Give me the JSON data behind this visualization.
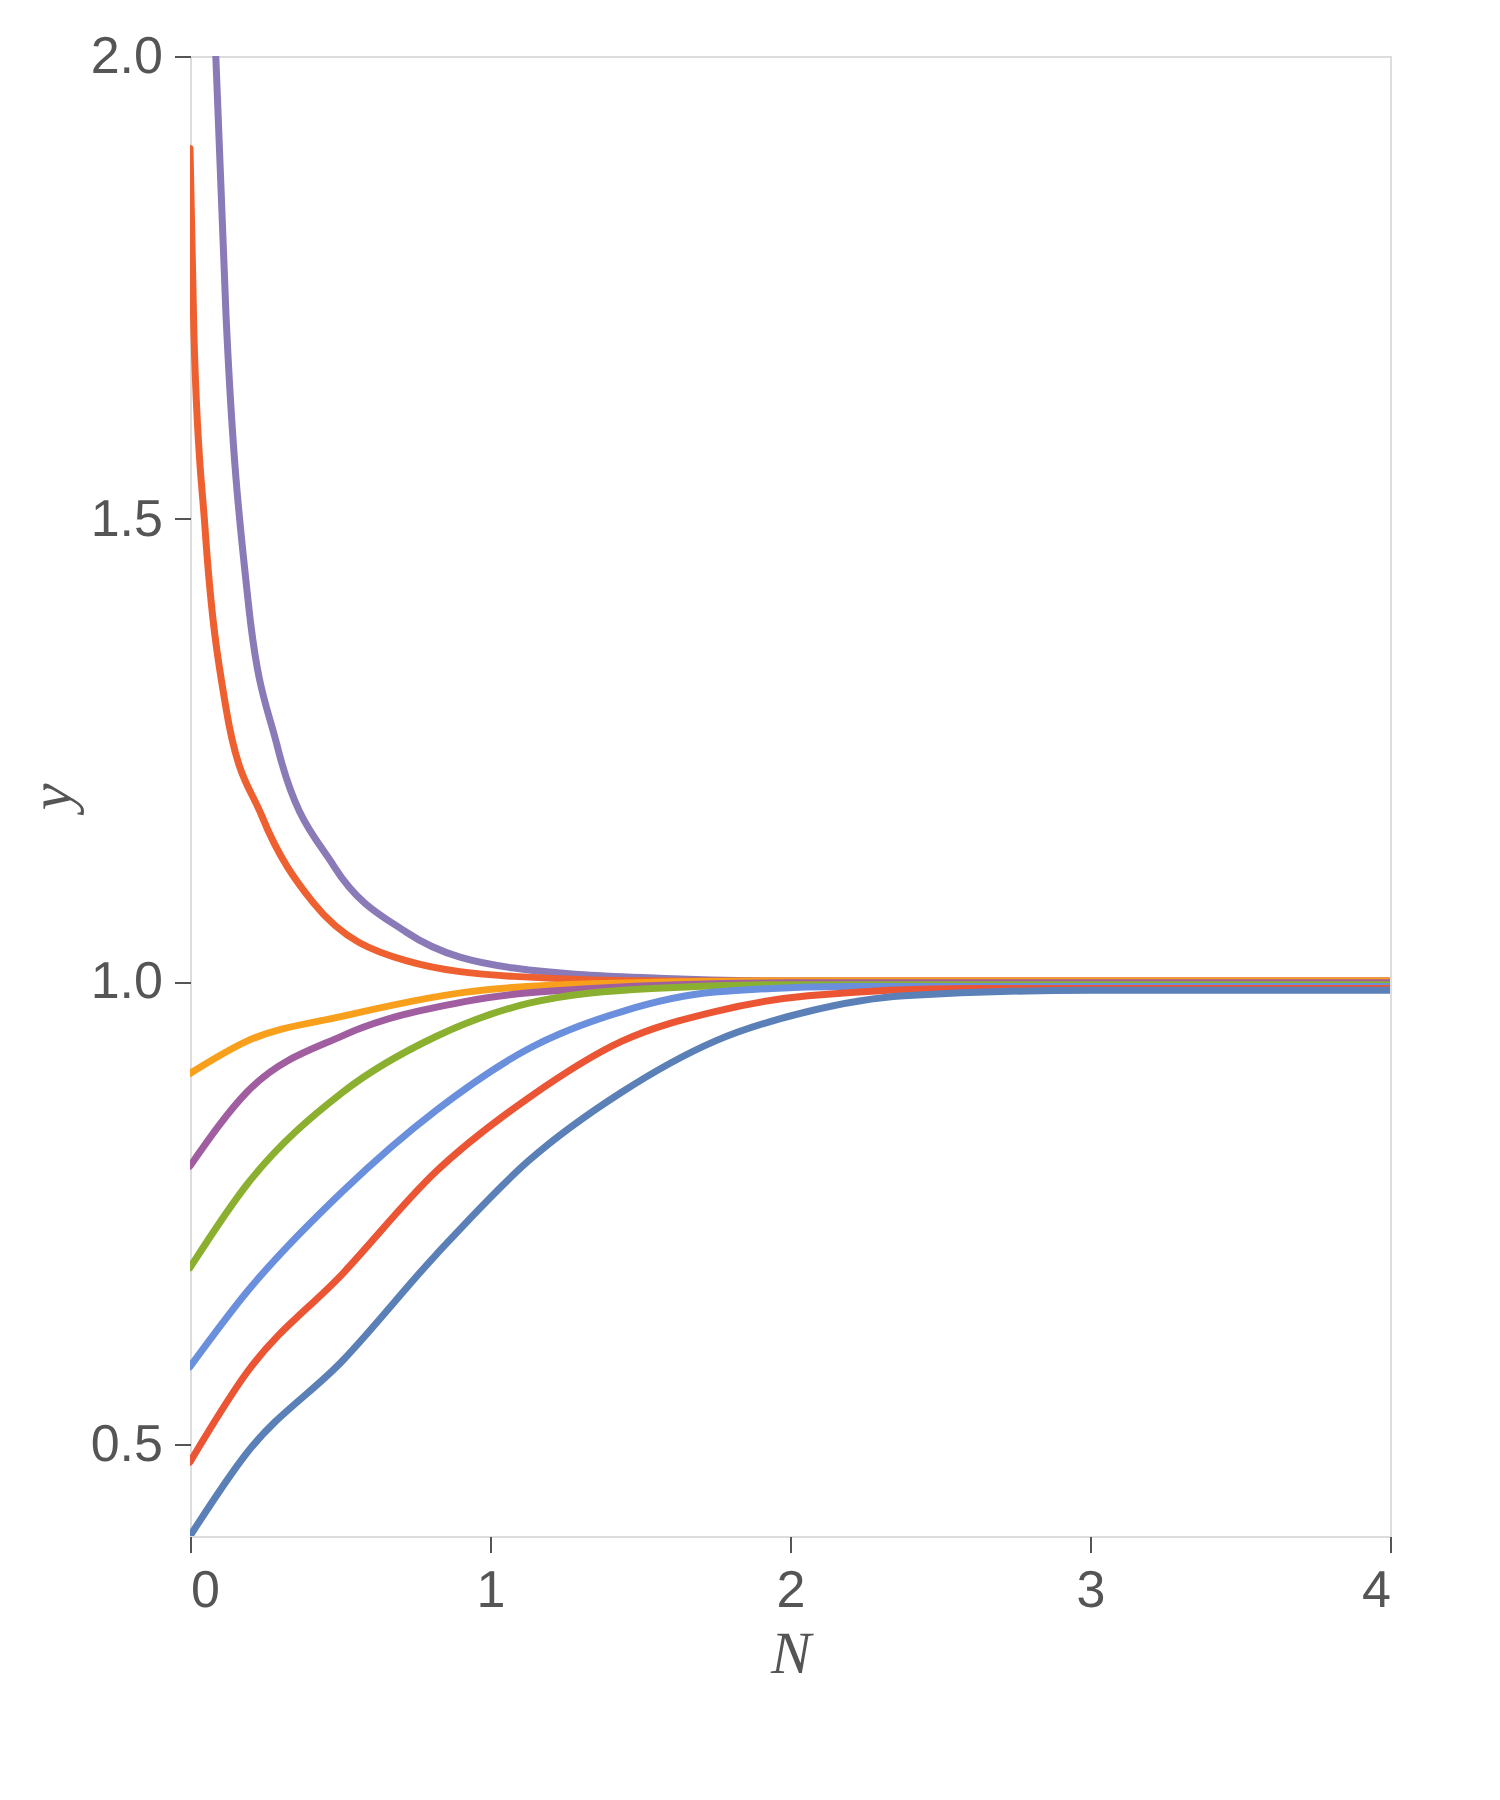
{
  "chart_data": {
    "type": "line",
    "xlabel": "N",
    "ylabel": "y",
    "xlim": [
      0,
      4
    ],
    "ylim": [
      0.4,
      2.0
    ],
    "xticks": [
      {
        "value": 0,
        "label": "0"
      },
      {
        "value": 1,
        "label": "1"
      },
      {
        "value": 2,
        "label": "2"
      },
      {
        "value": 3,
        "label": "3"
      },
      {
        "value": 4,
        "label": "4"
      }
    ],
    "yticks": [
      {
        "value": 0.5,
        "label": "0.5"
      },
      {
        "value": 1.0,
        "label": "1.0"
      },
      {
        "value": 1.5,
        "label": "1.5"
      },
      {
        "value": 2.0,
        "label": "2.0"
      }
    ],
    "grid": false,
    "legend": false,
    "line_style": "solid",
    "marker": "none",
    "series": [
      {
        "color": "#8a7ab8",
        "x": [
          0.086,
          0.12,
          0.194,
          0.29,
          0.48,
          0.72,
          1.08,
          1.56,
          2.0,
          4.0
        ],
        "values": [
          2.0,
          1.72,
          1.41,
          1.255,
          1.124,
          1.053,
          1.014,
          1.003,
          1.0,
          1.0
        ]
      },
      {
        "color": "#ee6030",
        "x": [
          0,
          0.013,
          0.05,
          0.12,
          0.24,
          0.41,
          0.72,
          1.08,
          1.6,
          4.0
        ],
        "values": [
          1.9,
          1.7,
          1.49,
          1.295,
          1.178,
          1.085,
          1.022,
          1.005,
          1.0,
          1.0
        ]
      },
      {
        "color": "#f8a01c",
        "x": [
          0,
          0.19,
          0.51,
          0.92,
          1.34,
          2.0,
          4.0
        ],
        "values": [
          0.9,
          0.935,
          0.962,
          0.988,
          0.997,
          1.0,
          1.0
        ]
      },
      {
        "color": "#a05ea0",
        "x": [
          0,
          0.19,
          0.51,
          0.92,
          1.34,
          2.0,
          4.0
        ],
        "values": [
          0.8,
          0.88,
          0.941,
          0.978,
          0.992,
          0.998,
          0.998
        ]
      },
      {
        "color": "#8bb030",
        "x": [
          0,
          0.19,
          0.51,
          0.82,
          1.13,
          1.54,
          2.0,
          4.0
        ],
        "values": [
          0.69,
          0.78,
          0.88,
          0.94,
          0.976,
          0.992,
          0.996,
          0.996
        ]
      },
      {
        "color": "#6a8fdd",
        "x": [
          0,
          0.19,
          0.51,
          0.82,
          1.13,
          1.44,
          1.75,
          2.2,
          4.0
        ],
        "values": [
          0.583,
          0.664,
          0.773,
          0.86,
          0.927,
          0.967,
          0.988,
          0.994,
          0.994
        ]
      },
      {
        "color": "#eb5533",
        "x": [
          0,
          0.19,
          0.51,
          0.82,
          1.13,
          1.44,
          1.75,
          2.06,
          2.6,
          4.0
        ],
        "values": [
          0.48,
          0.577,
          0.684,
          0.794,
          0.874,
          0.935,
          0.967,
          0.984,
          0.992,
          0.992
        ]
      },
      {
        "color": "#5b80b8",
        "x": [
          0,
          0.19,
          0.51,
          0.82,
          1.13,
          1.44,
          1.75,
          2.06,
          2.38,
          3.0,
          4.0
        ],
        "values": [
          0.4,
          0.49,
          0.59,
          0.704,
          0.806,
          0.88,
          0.935,
          0.967,
          0.984,
          0.99,
          0.99
        ]
      }
    ]
  }
}
